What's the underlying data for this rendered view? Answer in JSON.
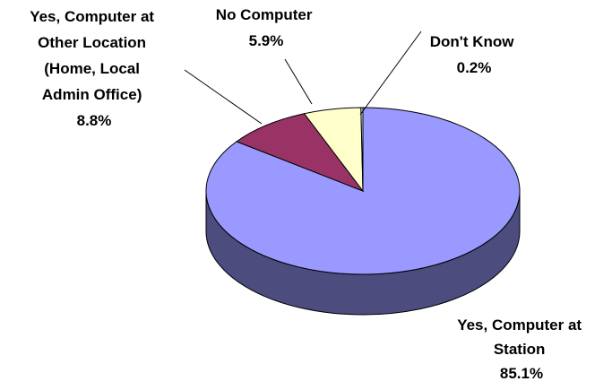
{
  "chart_data": {
    "type": "pie",
    "title": "",
    "slices": [
      {
        "label_lines": [
          "Yes, Computer at",
          "Station"
        ],
        "value_text": "85.1%",
        "value": 85.1,
        "color": "#9999ff",
        "side_color": "#4c4c7f"
      },
      {
        "label_lines": [
          "Yes, Computer at",
          "Other Location",
          "(Home, Local",
          "Admin Office)"
        ],
        "value_text": "8.8%",
        "value": 8.8,
        "color": "#993366",
        "side_color": "#4c1933"
      },
      {
        "label_lines": [
          "No Computer"
        ],
        "value_text": "5.9%",
        "value": 5.9,
        "color": "#ffffcc",
        "side_color": "#7f7f66"
      },
      {
        "label_lines": [
          "Don't Know"
        ],
        "value_text": "0.2%",
        "value": 0.2,
        "color": "#ccffff",
        "side_color": "#667f7f"
      }
    ]
  }
}
